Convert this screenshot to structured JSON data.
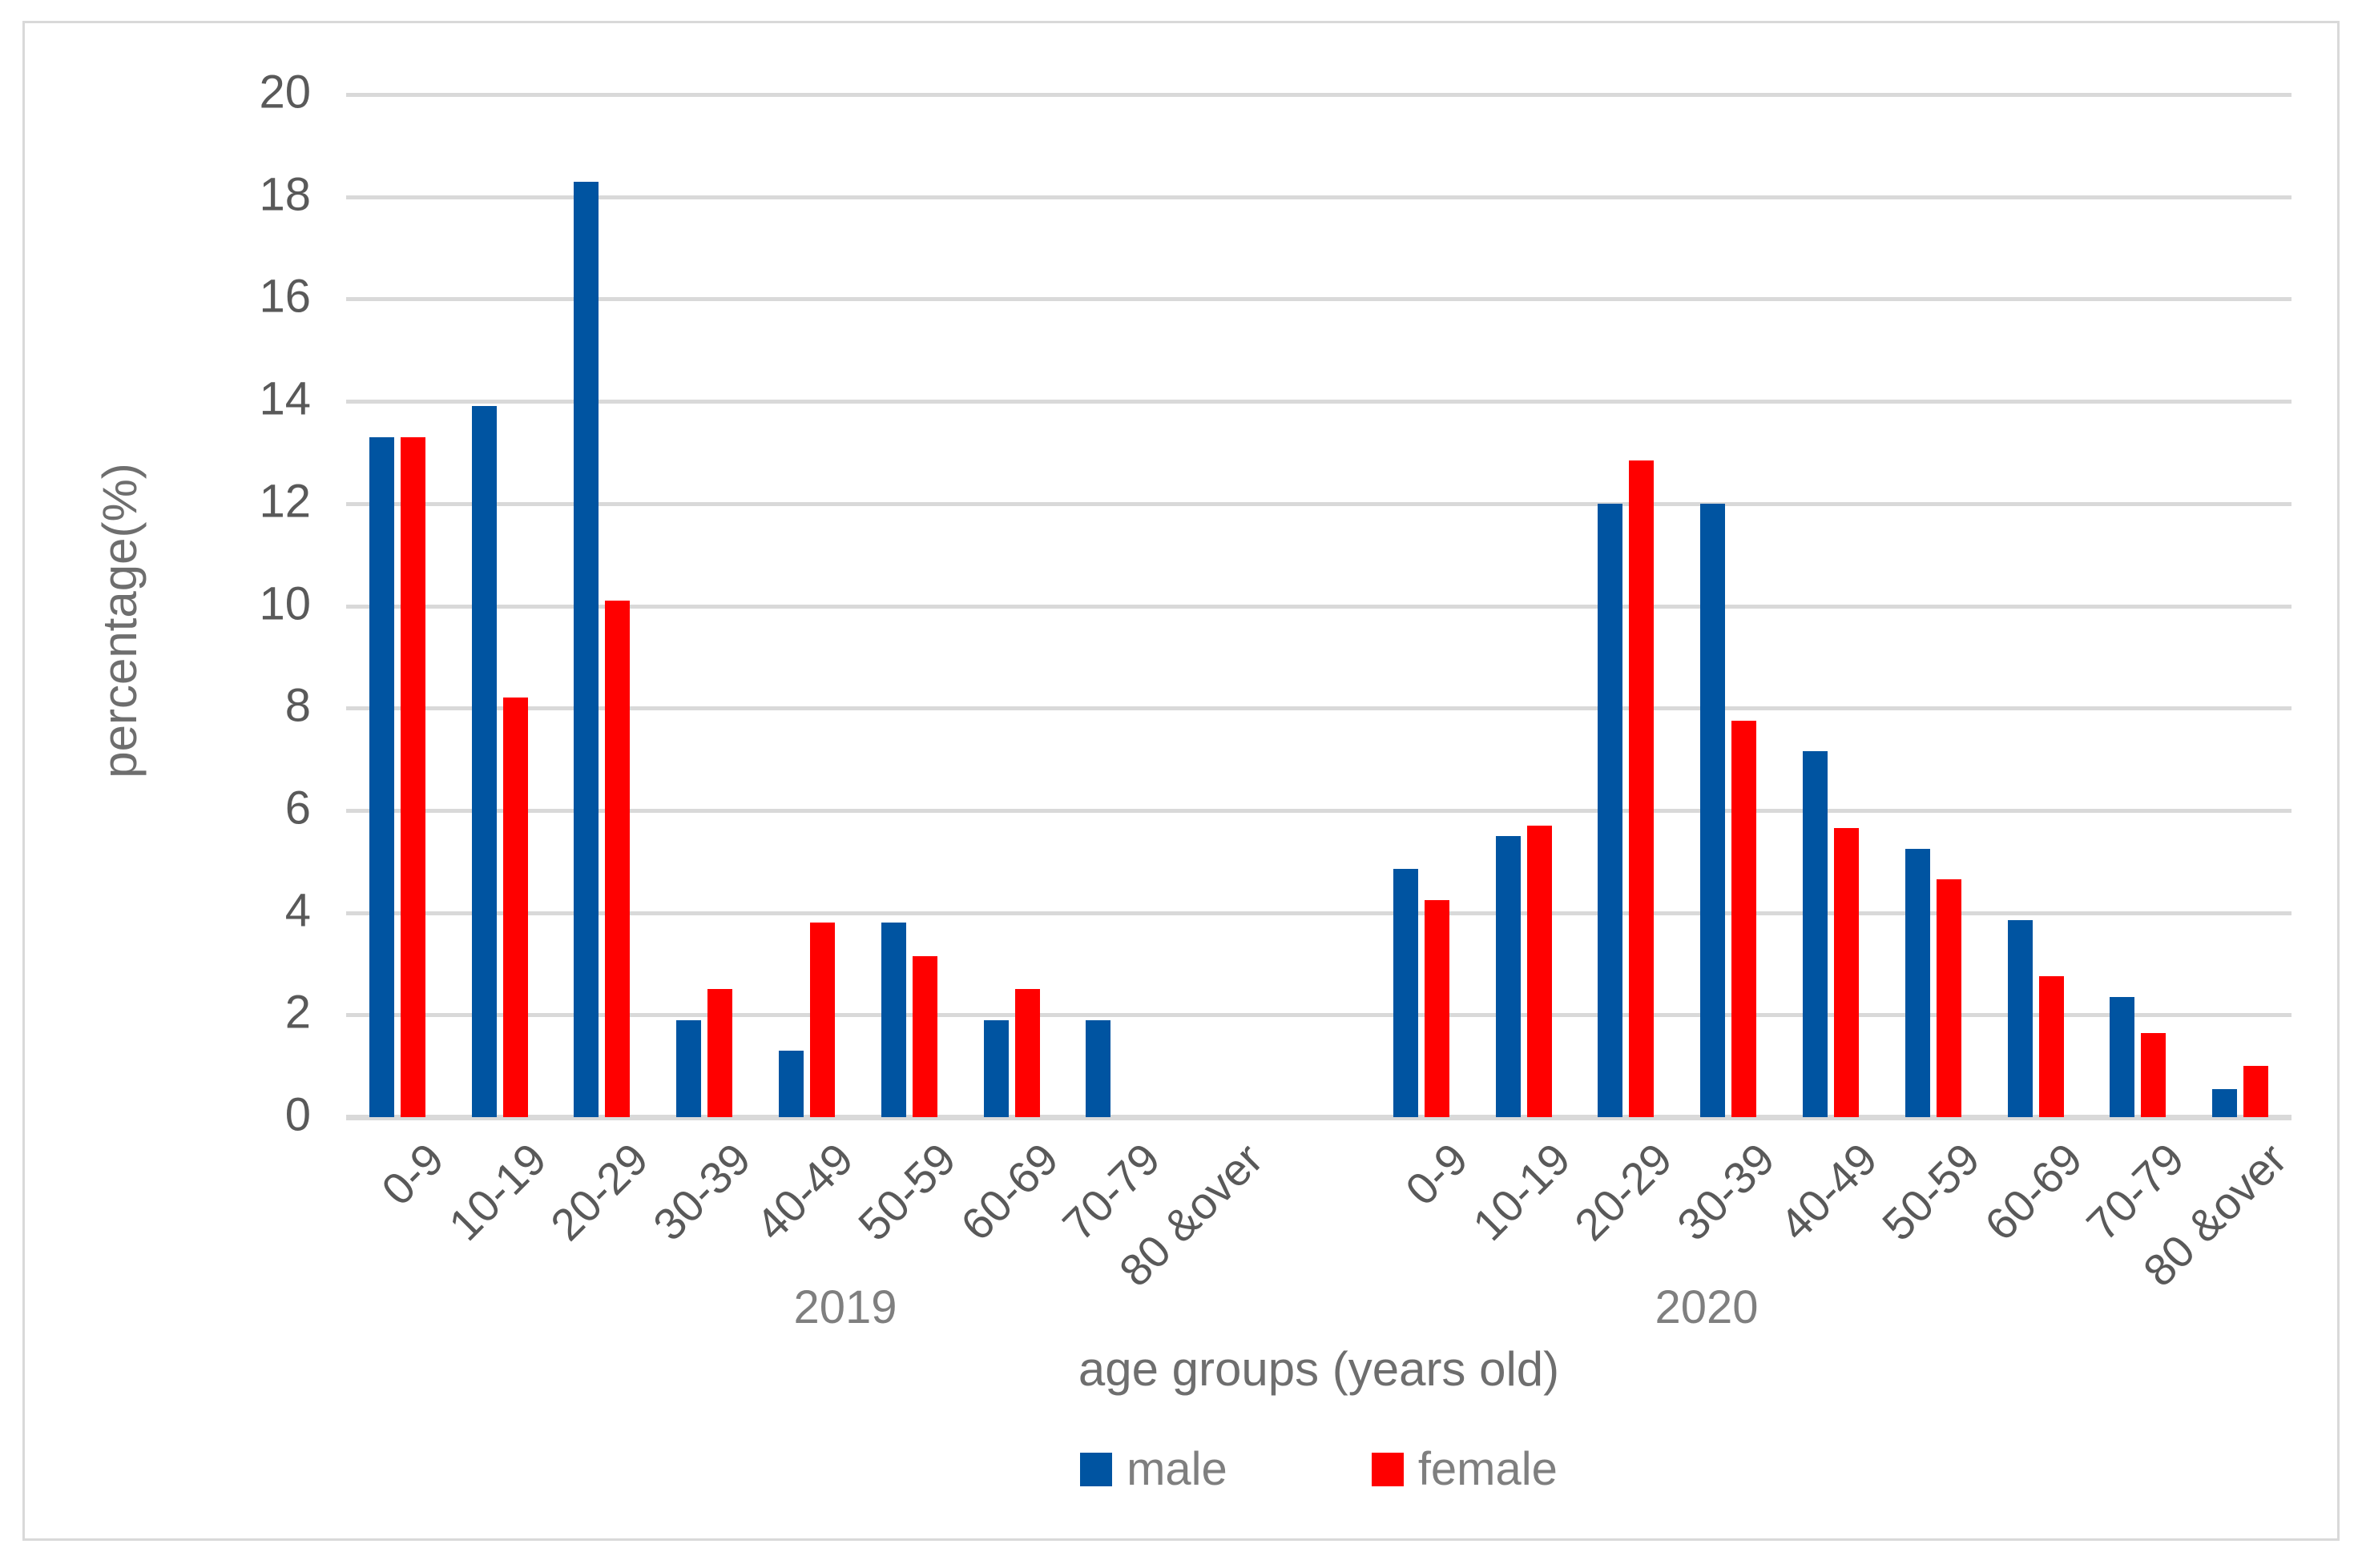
{
  "chart_data": {
    "type": "bar",
    "title": "",
    "ylabel": "percentage(%)",
    "xlabel": "age groups (years old)",
    "ylim": [
      0,
      20
    ],
    "yticks": [
      0,
      2,
      4,
      6,
      8,
      10,
      12,
      14,
      16,
      18,
      20
    ],
    "grid": true,
    "legend_position": "bottom",
    "group_labels": [
      "2019",
      "2020"
    ],
    "categories": [
      "0-9",
      "10-19",
      "20-29",
      "30-39",
      "40-49",
      "50-59",
      "60-69",
      "70-79",
      "80 &over"
    ],
    "series": [
      {
        "name": "male",
        "color": "#0054a1",
        "values": {
          "2019": [
            13.3,
            13.9,
            18.3,
            1.9,
            1.3,
            3.8,
            1.9,
            1.9,
            0
          ],
          "2020": [
            4.85,
            5.5,
            12.0,
            12.0,
            7.15,
            5.25,
            3.85,
            2.35,
            0.55
          ]
        }
      },
      {
        "name": "female",
        "color": "#ff0000",
        "values": {
          "2019": [
            13.3,
            8.2,
            10.1,
            2.5,
            3.8,
            3.15,
            2.5,
            0,
            0
          ],
          "2020": [
            4.25,
            5.7,
            12.85,
            7.75,
            5.65,
            4.65,
            2.75,
            1.65,
            1.0
          ]
        }
      }
    ]
  }
}
